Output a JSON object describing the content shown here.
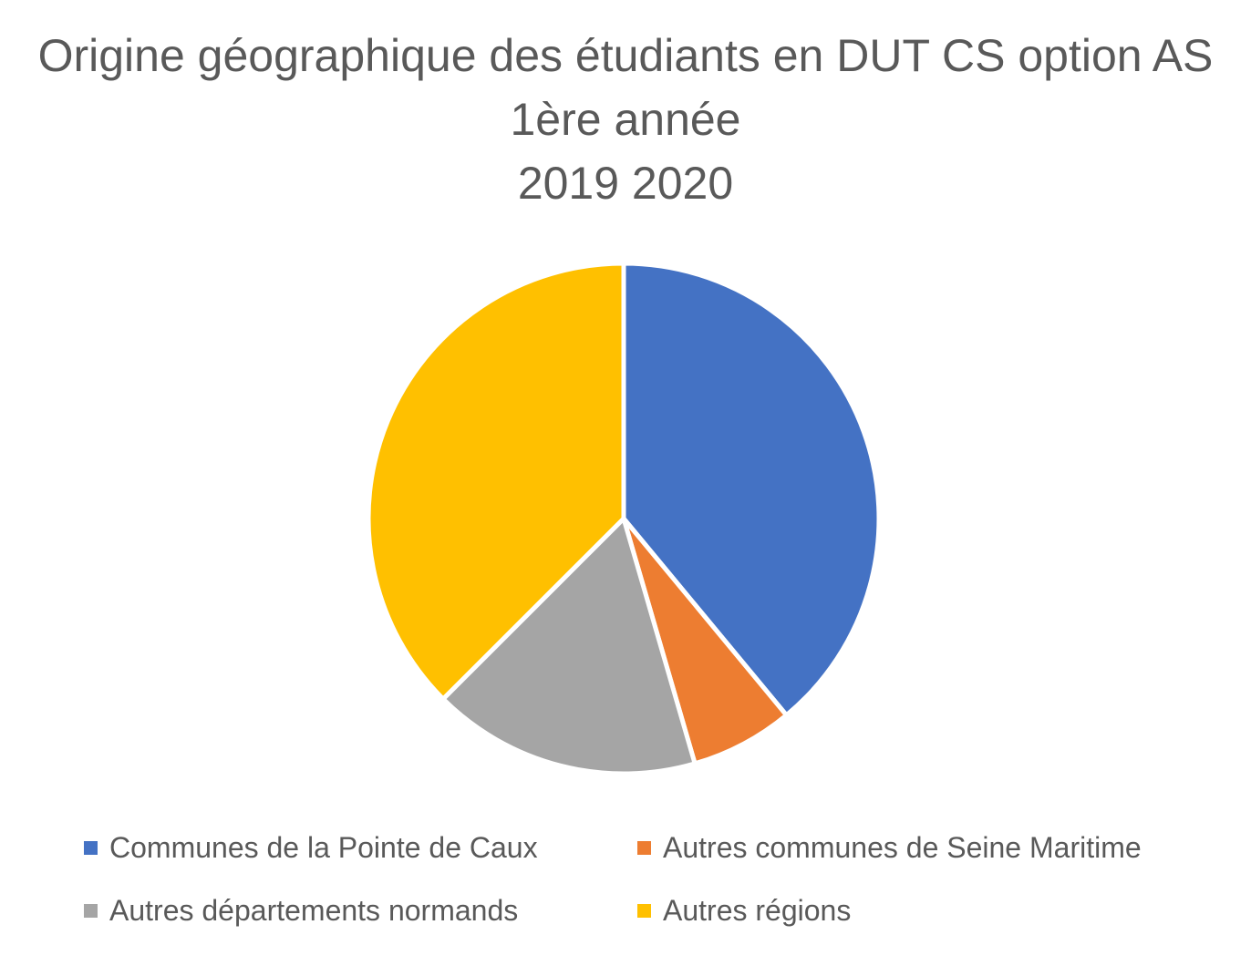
{
  "chart_data": {
    "type": "pie",
    "title_lines": [
      "Origine géographique des étudiants en DUT CS option AS",
      "1ère année",
      "2019 2020"
    ],
    "categories": [
      "Communes de la Pointe de Caux",
      "Autres communes de Seine Maritime",
      "Autres départements normands",
      "Autres régions"
    ],
    "values": [
      39,
      6.5,
      17,
      37.5
    ],
    "colors": [
      "#4472c4",
      "#ed7d31",
      "#a5a5a5",
      "#ffc000"
    ],
    "legend_position": "bottom",
    "start_angle": "12 o'clock, clockwise"
  }
}
